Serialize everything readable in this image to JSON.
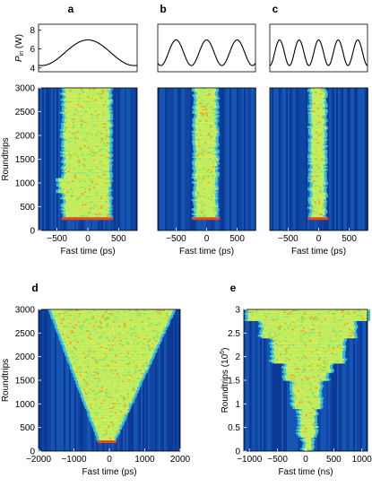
{
  "chart_data": [
    {
      "panel": "a",
      "type": "line",
      "ylabel": "P_in (W)",
      "ylabel_main": "P",
      "ylabel_sub": "in",
      "ylabel_unit": "(W)",
      "yticks": [
        4,
        6,
        8
      ],
      "ylim": [
        3.6,
        8.6
      ],
      "xlim": [
        -800,
        800
      ],
      "modulation": {
        "mean": 5.6,
        "amplitude": 1.35,
        "period_ps": 1500,
        "peak_at_ps": 0
      }
    },
    {
      "panel": "b",
      "type": "line",
      "xlim": [
        -800,
        800
      ],
      "ylim": [
        3.6,
        8.6
      ],
      "modulation": {
        "mean": 5.6,
        "amplitude": 1.35,
        "period_ps": 500,
        "peak_at_ps": 0
      }
    },
    {
      "panel": "c",
      "type": "line",
      "xlim": [
        -800,
        800
      ],
      "ylim": [
        3.6,
        8.6
      ],
      "modulation": {
        "mean": 5.6,
        "amplitude": 1.35,
        "period_ps": 320,
        "peak_at_ps": 0
      }
    },
    {
      "panel": "a",
      "type": "heatmap",
      "xlabel": "Fast time (ps)",
      "ylabel": "Roundtrips",
      "xticks": [
        -500,
        0,
        500
      ],
      "yticks": [
        0,
        500,
        1000,
        1500,
        2000,
        2500,
        3000
      ],
      "xlim": [
        -800,
        800
      ],
      "ylim": [
        0,
        3000
      ],
      "bright_region": {
        "start_roundtrip": 250,
        "left_ps": -380,
        "right_ps": 350
      }
    },
    {
      "panel": "b",
      "type": "heatmap",
      "xlabel": "Fast time (ps)",
      "xticks": [
        -500,
        0,
        500
      ],
      "xlim": [
        -800,
        800
      ],
      "ylim": [
        0,
        3000
      ],
      "bright_region": {
        "start_roundtrip": 250,
        "left_ps": -180,
        "right_ps": 150
      }
    },
    {
      "panel": "c",
      "type": "heatmap",
      "xlabel": "Fast time (ps)",
      "xticks": [
        -500,
        0,
        500
      ],
      "xlim": [
        -800,
        800
      ],
      "ylim": [
        0,
        3000
      ],
      "bright_region": {
        "start_roundtrip": 250,
        "left_ps": -120,
        "right_ps": 90
      }
    },
    {
      "panel": "d",
      "type": "heatmap",
      "xlabel": "Fast time (ps)",
      "ylabel": "Roundtrips",
      "xticks": [
        -2000,
        -1000,
        0,
        1000,
        2000
      ],
      "yticks": [
        0,
        500,
        1000,
        1500,
        2000,
        2500,
        3000
      ],
      "xlim": [
        -2000,
        2000
      ],
      "ylim": [
        0,
        3000
      ],
      "bright_region": {
        "start_roundtrip": 200,
        "start_left_ps": -250,
        "start_right_ps": 100,
        "end_left_ps": -1650,
        "end_right_ps": 1800
      }
    },
    {
      "panel": "e",
      "type": "heatmap",
      "xlabel": "Fast time (ns)",
      "ylabel": "Roundtrips (10^6)",
      "ylabel_main": "Roundtrips (10",
      "ylabel_exp": "6",
      "ylabel_end": ")",
      "xticks": [
        -1000,
        -500,
        0,
        500,
        1000
      ],
      "yticks": [
        0,
        0.5,
        1,
        1.5,
        2,
        2.5,
        3
      ],
      "xlim": [
        -1100,
        1100
      ],
      "ylim": [
        0,
        3
      ],
      "bright_region": {
        "center_ns": 50,
        "max_left_ns": -1050,
        "max_right_ns": 1050
      }
    }
  ]
}
